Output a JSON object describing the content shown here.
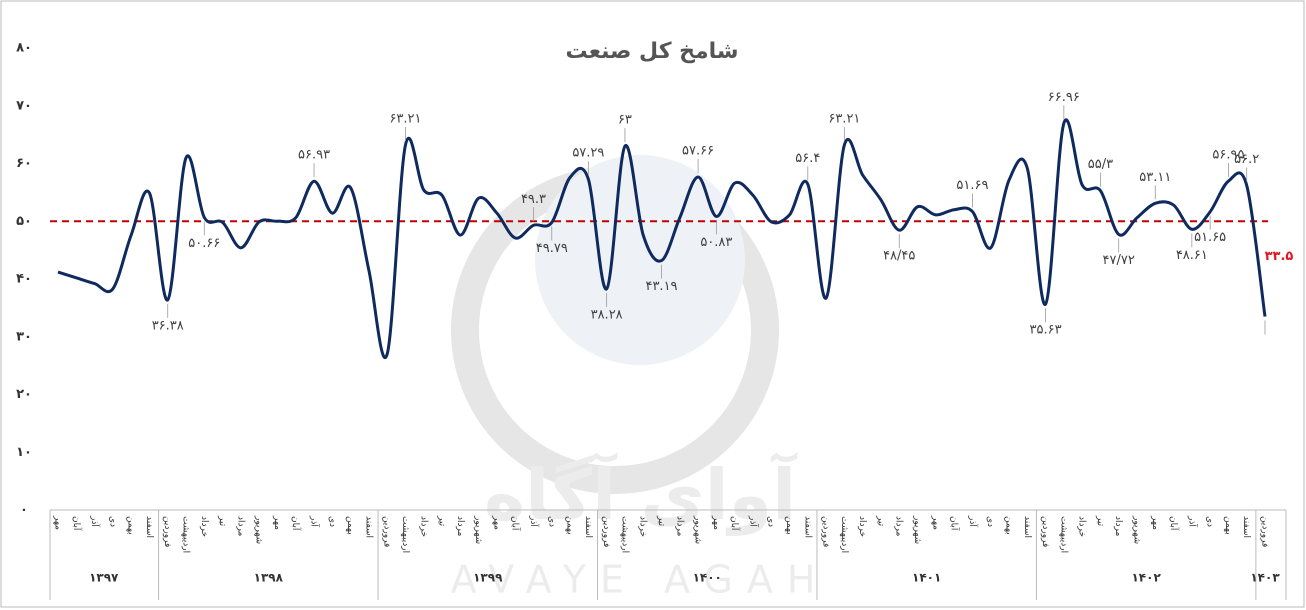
{
  "chart_data": {
    "type": "line",
    "title": "شامخ کل صنعت",
    "watermark": [
      "آوای آگاه",
      "AVAYE AGAH"
    ],
    "categories": [
      "مهر",
      "آبان",
      "آذر",
      "دی",
      "بهمن",
      "اسفند",
      "فروردین",
      "اردیبهشت",
      "خرداد",
      "تیر",
      "مرداد",
      "شهریور",
      "مهر",
      "آبان",
      "آذر",
      "دی",
      "بهمن",
      "اسفند",
      "فروردین",
      "اردیبهشت",
      "خرداد",
      "تیر",
      "مرداد",
      "شهریور",
      "مهر",
      "آبان",
      "آذر",
      "دی",
      "بهمن",
      "اسفند",
      "فروردین",
      "اردیبهشت",
      "خرداد",
      "تیر",
      "مرداد",
      "شهریور",
      "مهر",
      "آبان",
      "آذر",
      "دی",
      "بهمن",
      "اسفند",
      "فروردین",
      "اردیبهشت",
      "خرداد",
      "تیر",
      "مرداد",
      "شهریور",
      "مهر",
      "آبان",
      "آذر",
      "دی",
      "بهمن",
      "اسفند",
      "فروردین",
      "اردیبهشت",
      "خرداد",
      "تیر",
      "مرداد",
      "شهریور",
      "مهر",
      "آبان",
      "آذر",
      "دی",
      "بهمن",
      "اسفند",
      "فروردین"
    ],
    "category_years": [
      "۱۳۹۷",
      "۱۳۹۷",
      "۱۳۹۷",
      "۱۳۹۷",
      "۱۳۹۷",
      "۱۳۹۷",
      "۱۳۹۸",
      "۱۳۹۸",
      "۱۳۹۸",
      "۱۳۹۸",
      "۱۳۹۸",
      "۱۳۹۸",
      "۱۳۹۸",
      "۱۳۹۸",
      "۱۳۹۸",
      "۱۳۹۸",
      "۱۳۹۸",
      "۱۳۹۸",
      "۱۳۹۹",
      "۱۳۹۹",
      "۱۳۹۹",
      "۱۳۹۹",
      "۱۳۹۹",
      "۱۳۹۹",
      "۱۳۹۹",
      "۱۳۹۹",
      "۱۳۹۹",
      "۱۳۹۹",
      "۱۳۹۹",
      "۱۳۹۹",
      "۱۴۰۰",
      "۱۴۰۰",
      "۱۴۰۰",
      "۱۴۰۰",
      "۱۴۰۰",
      "۱۴۰۰",
      "۱۴۰۰",
      "۱۴۰۰",
      "۱۴۰۰",
      "۱۴۰۰",
      "۱۴۰۰",
      "۱۴۰۰",
      "۱۴۰۱",
      "۱۴۰۱",
      "۱۴۰۱",
      "۱۴۰۱",
      "۱۴۰۱",
      "۱۴۰۱",
      "۱۴۰۱",
      "۱۴۰۱",
      "۱۴۰۱",
      "۱۴۰۱",
      "۱۴۰۱",
      "۱۴۰۱",
      "۱۴۰۲",
      "۱۴۰۲",
      "۱۴۰۲",
      "۱۴۰۲",
      "۱۴۰۲",
      "۱۴۰۲",
      "۱۴۰۲",
      "۱۴۰۲",
      "۱۴۰۲",
      "۱۴۰۲",
      "۱۴۰۲",
      "۱۴۰۲",
      "۱۴۰۳"
    ],
    "series": [
      {
        "name": "شامخ کل صنعت",
        "color": "#0f2a5e",
        "values": [
          41.2,
          40.2,
          39.2,
          38.3,
          47.6,
          54.9,
          36.38,
          61,
          50.66,
          49.8,
          45.4,
          49.9,
          50,
          50.6,
          56.93,
          51.4,
          55.8,
          41.5,
          27,
          63.21,
          55.4,
          54.5,
          47.6,
          54,
          51.4,
          47.1,
          49.3,
          49.79,
          57.6,
          57.29,
          38.28,
          63,
          47.6,
          43.19,
          50.6,
          57.66,
          50.83,
          56.6,
          54.5,
          49.9,
          51.1,
          56.4,
          36.7,
          63.21,
          58,
          53.7,
          48.45,
          52.5,
          51.1,
          52,
          51.69,
          45.4,
          57.1,
          59.2,
          35.63,
          66.96,
          56.3,
          55.3,
          47.72,
          50.6,
          53.11,
          52.8,
          48.61,
          51.65,
          56.95,
          56.2,
          33.5
        ],
        "value_labels": [
          null,
          null,
          null,
          null,
          null,
          null,
          "۳۶.۳۸",
          null,
          "۵۰.۶۶",
          null,
          null,
          null,
          null,
          null,
          "۵۶.۹۳",
          null,
          null,
          null,
          null,
          "۶۳.۲۱",
          null,
          null,
          null,
          null,
          null,
          null,
          "۴۹.۳",
          "۴۹.۷۹",
          null,
          "۵۷.۲۹",
          "۳۸.۲۸",
          "۶۳",
          null,
          "۴۳.۱۹",
          null,
          "۵۷.۶۶",
          "۵۰.۸۳",
          null,
          null,
          null,
          null,
          "۵۶.۴",
          null,
          "۶۳.۲۱",
          null,
          null,
          "۴۸/۴۵",
          null,
          null,
          null,
          "۵۱.۶۹",
          null,
          null,
          null,
          "۳۵.۶۳",
          "۶۶.۹۶",
          null,
          "۵۵/۳",
          "۴۷/۷۲",
          null,
          "۵۳.۱۱",
          null,
          "۴۸.۶۱",
          "۵۱.۶۵",
          "۵۶.۹۵",
          "۵۶.۲",
          "۳۳.۵"
        ]
      }
    ],
    "last_label_color": "#e0191f",
    "reference_line": {
      "value": 50,
      "color": "#c00000"
    },
    "ylim": [
      0,
      80
    ],
    "yticks": [
      {
        "value": 0,
        "label": "۰"
      },
      {
        "value": 10,
        "label": "۱۰"
      },
      {
        "value": 20,
        "label": "۲۰"
      },
      {
        "value": 30,
        "label": "۳۰"
      },
      {
        "value": 40,
        "label": "۴۰"
      },
      {
        "value": 50,
        "label": "۵۰"
      },
      {
        "value": 60,
        "label": "۶۰"
      },
      {
        "value": 70,
        "label": "۷۰"
      },
      {
        "value": 80,
        "label": "۸۰"
      }
    ],
    "grid": false
  }
}
